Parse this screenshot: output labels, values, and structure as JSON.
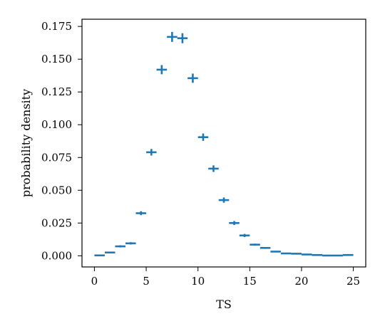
{
  "chart_data": {
    "type": "scatter",
    "title": "",
    "xlabel": "TS",
    "ylabel": "probability density",
    "xlim": [
      -1.2,
      26.2
    ],
    "ylim": [
      -0.0085,
      0.1805
    ],
    "x_ticks": [
      0,
      5,
      10,
      15,
      20,
      25
    ],
    "x_tick_labels": [
      "0",
      "5",
      "10",
      "15",
      "20",
      "25"
    ],
    "y_ticks": [
      0,
      0.025,
      0.05,
      0.075,
      0.1,
      0.125,
      0.15,
      0.175
    ],
    "y_tick_labels": [
      "0.000",
      "0.025",
      "0.050",
      "0.075",
      "0.100",
      "0.125",
      "0.150",
      "0.175"
    ],
    "grid": false,
    "legend": "none",
    "marker": "errorbar-cross",
    "color": "#1f77b4",
    "series": [
      {
        "x": [
          0.5,
          1.5,
          2.5,
          3.5,
          4.5,
          5.5,
          6.5,
          7.5,
          8.5,
          9.5,
          10.5,
          11.5,
          12.5,
          13.5,
          14.5,
          15.5,
          16.5,
          17.5,
          18.5,
          19.5,
          20.5,
          21.5,
          22.5,
          23.5,
          24.5
        ],
        "y": [
          0.0003,
          0.0025,
          0.0072,
          0.0095,
          0.0325,
          0.079,
          0.142,
          0.167,
          0.166,
          0.1355,
          0.0905,
          0.0665,
          0.0425,
          0.025,
          0.0155,
          0.0085,
          0.006,
          0.0032,
          0.0018,
          0.0016,
          0.001,
          0.0006,
          0.0002,
          0.0002,
          0.0006
        ],
        "y_err": [
          0.0003,
          0.0005,
          0.0008,
          0.0009,
          0.0015,
          0.0025,
          0.0035,
          0.0038,
          0.0038,
          0.0035,
          0.0028,
          0.0025,
          0.002,
          0.0015,
          0.0012,
          0.0008,
          0.0007,
          0.0005,
          0.0004,
          0.0004,
          0.0003,
          0.0002,
          0.0001,
          0.0001,
          0.0002
        ]
      }
    ]
  }
}
